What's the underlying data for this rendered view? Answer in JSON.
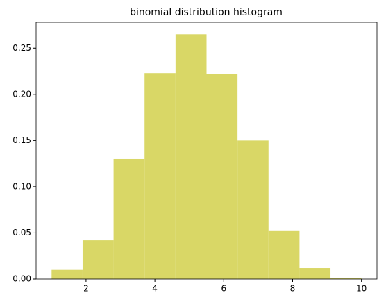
{
  "chart_data": {
    "type": "histogram",
    "title": "binomial distribution histogram",
    "bins": [
      1,
      1.9,
      2.8,
      3.7,
      4.6,
      5.5,
      6.4,
      7.3,
      8.2,
      9.1,
      10
    ],
    "values": [
      0.01,
      0.042,
      0.13,
      0.223,
      0.265,
      0.222,
      0.15,
      0.052,
      0.012,
      0.001
    ],
    "color": "#d9d766",
    "xlim": [
      0.55,
      10.45
    ],
    "xticks": [
      2,
      4,
      6,
      8,
      10
    ],
    "ylim": [
      0,
      0.278
    ],
    "yticks": [
      {
        "value": 0,
        "label": "0.00"
      },
      {
        "value": 0.05,
        "label": "0.05"
      },
      {
        "value": 0.1,
        "label": "0.10"
      },
      {
        "value": 0.15,
        "label": "0.15"
      },
      {
        "value": 0.2,
        "label": "0.20"
      },
      {
        "value": 0.25,
        "label": "0.25"
      }
    ],
    "grid": false
  }
}
